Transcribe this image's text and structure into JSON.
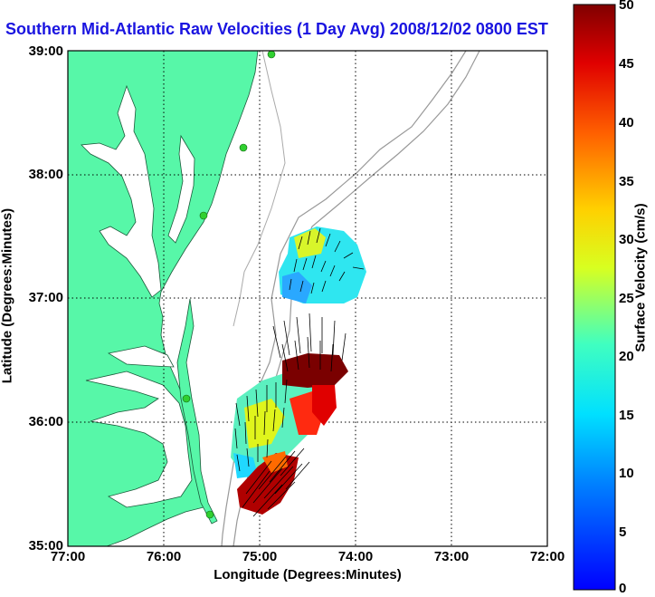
{
  "map": {
    "title": "Southern Mid-Atlantic Raw Velocities (1 Day Avg) 2008/12/02 0800 EST",
    "xlabel": "Longitude (Degrees:Minutes)",
    "ylabel": "Latitude (Degrees:Minutes)",
    "lon_ticks": [
      "77:00",
      "76:00",
      "75:00",
      "74:00",
      "73:00",
      "72:00"
    ],
    "lat_ticks": [
      "39:00",
      "38:00",
      "37:00",
      "36:00",
      "35:00"
    ],
    "lon_range": [
      -77,
      -72
    ],
    "lat_range": [
      35,
      39
    ],
    "land_color": "#57f7a8",
    "grid": true
  },
  "colorbar": {
    "label": "Surface Velocity (cm/s)",
    "ticks": [
      "50",
      "45",
      "40",
      "35",
      "30",
      "25",
      "20",
      "15",
      "10",
      "5",
      "0"
    ],
    "range": [
      0,
      50
    ],
    "colormap": "jet"
  },
  "chart_data": {
    "type": "heatmap",
    "title": "Southern Mid-Atlantic Raw Velocities (1 Day Avg) 2008/12/02 0800 EST",
    "xlabel": "Longitude (Degrees:Minutes)",
    "ylabel": "Latitude (Degrees:Minutes)",
    "xlim": [
      -77,
      -72
    ],
    "ylim": [
      35,
      39
    ],
    "colorbar_range_cm_s": [
      0,
      50
    ],
    "regions": [
      {
        "name": "",
        "lon": [
          -74.9,
          -74.1
        ],
        "lat": [
          36.95,
          37.5
        ],
        "speed_cm_s": 12
      },
      {
        "name": "",
        "lon": [
          -75.3,
          -74.7
        ],
        "lat": [
          35.8,
          36.4
        ],
        "speed_cm_s": 18
      },
      {
        "name": "",
        "lon": [
          -74.95,
          -74.3
        ],
        "lat": [
          36.25,
          36.55
        ],
        "speed_cm_s": 48
      },
      {
        "name": "",
        "lon": [
          -75.2,
          -74.6
        ],
        "lat": [
          35.3,
          35.6
        ],
        "speed_cm_s": 47
      }
    ]
  }
}
